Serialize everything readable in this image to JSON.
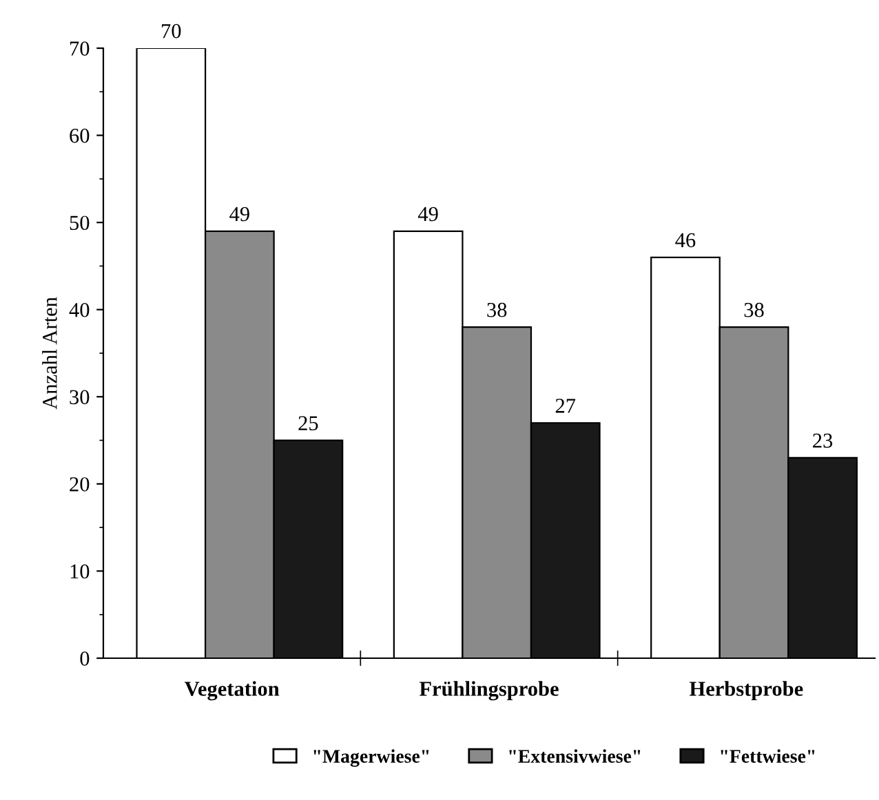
{
  "chart_data": {
    "type": "bar",
    "ylabel": "Anzahl Arten",
    "categories": [
      "Vegetation",
      "Frühlingsprobe",
      "Herbstprobe"
    ],
    "series": [
      {
        "name": "\"Magerwiese\"",
        "color": "#ffffff",
        "values": [
          70,
          49,
          46
        ]
      },
      {
        "name": "\"Extensivwiese\"",
        "color": "#8a8a8a",
        "values": [
          49,
          38,
          38
        ]
      },
      {
        "name": "\"Fettwiese\"",
        "color": "#1a1a1a",
        "values": [
          25,
          27,
          23
        ]
      }
    ],
    "ylim": [
      0,
      70
    ],
    "yticks": [
      0,
      10,
      20,
      30,
      40,
      50,
      60,
      70
    ],
    "data_labels": true,
    "grid": false,
    "legend": "bottom"
  }
}
